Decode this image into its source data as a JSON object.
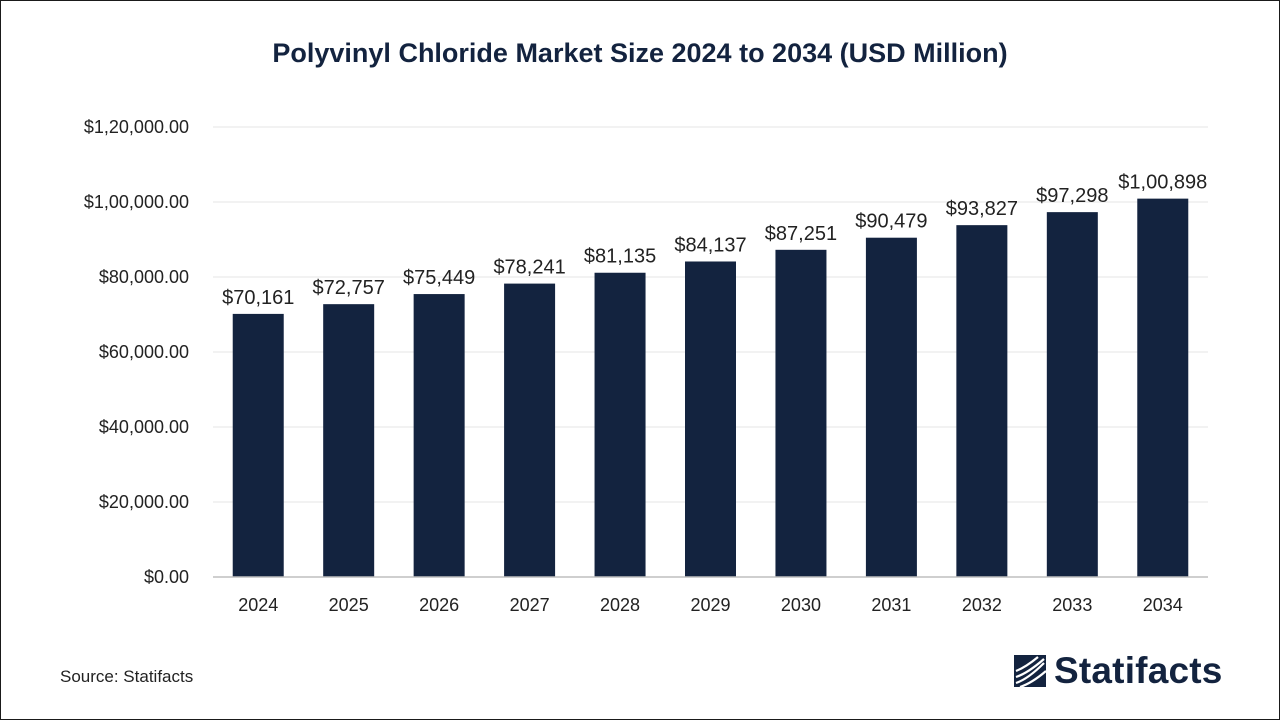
{
  "chart_data": {
    "type": "bar",
    "title": "Polyvinyl Chloride Market Size 2024 to 2034 (USD Million)",
    "xlabel": "",
    "ylabel": "",
    "categories": [
      "2024",
      "2025",
      "2026",
      "2027",
      "2028",
      "2029",
      "2030",
      "2031",
      "2032",
      "2033",
      "2034"
    ],
    "values": [
      70161,
      72757,
      75449,
      78241,
      81135,
      84137,
      87251,
      90479,
      93827,
      97298,
      100898
    ],
    "data_labels": [
      "$70,161",
      "$72,757",
      "$75,449",
      "$78,241",
      "$81,135",
      "$84,137",
      "$87,251",
      "$90,479",
      "$93,827",
      "$97,298",
      "$1,00,898"
    ],
    "y_ticks": [
      0,
      20000,
      40000,
      60000,
      80000,
      100000,
      120000
    ],
    "y_tick_labels": [
      "$0.00",
      "$20,000.00",
      "$40,000.00",
      "$60,000.00",
      "$80,000.00",
      "$1,00,000.00",
      "$1,20,000.00"
    ],
    "ylim": [
      0,
      120000
    ],
    "grid": true,
    "legend": "none",
    "bar_color": "#13233f"
  },
  "footer": {
    "source": "Source: Statifacts",
    "brand": "Statifacts"
  },
  "icons": {
    "brand_logo": "statifacts-logo-icon"
  }
}
